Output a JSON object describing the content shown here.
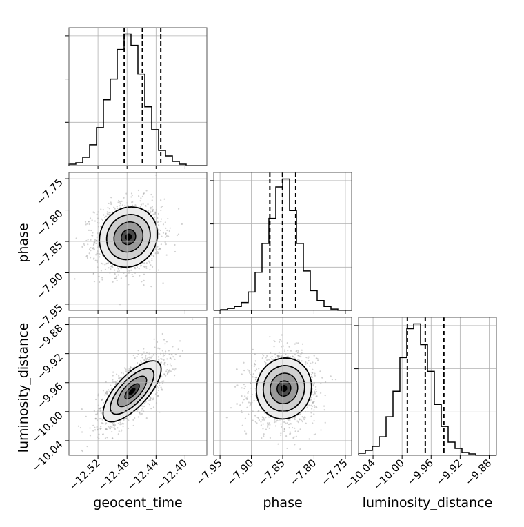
{
  "chart_data": {
    "type": "corner",
    "parameters": [
      "geocent_time",
      "phase",
      "luminosity_distance"
    ],
    "grid": true,
    "diagonal": [
      {
        "name": "geocent_time",
        "type": "histogram",
        "xlim": [
          -12.56,
          -12.37
        ],
        "ticks": [
          -12.52,
          -12.48,
          -12.44,
          -12.4
        ],
        "tick_labels": [
          "−12.52",
          "−12.48",
          "−12.44",
          "−12.40"
        ],
        "quantiles": [
          -12.4838,
          -12.4588,
          -12.4335
        ],
        "bin_edges": [
          -12.56,
          -12.5505,
          -12.541,
          -12.5315,
          -12.522,
          -12.5125,
          -12.503,
          -12.4935,
          -12.484,
          -12.4745,
          -12.465,
          -12.4555,
          -12.446,
          -12.4365,
          -12.427,
          -12.4175,
          -12.408,
          -12.3985,
          -12.389,
          -12.3795,
          -12.37
        ],
        "counts": [
          2,
          4,
          12,
          30,
          55,
          95,
          125,
          168,
          190,
          174,
          132,
          85,
          52,
          22,
          14,
          6,
          2,
          0,
          0,
          0
        ]
      },
      {
        "name": "phase",
        "type": "histogram",
        "xlim": [
          -7.96,
          -7.74
        ],
        "ticks": [
          -7.95,
          -7.9,
          -7.85,
          -7.8,
          -7.75
        ],
        "tick_labels": [
          "−7.95",
          "−7.90",
          "−7.85",
          "−7.80",
          "−7.75"
        ],
        "quantiles": [
          -7.8705,
          -7.8503,
          -7.8292
        ],
        "bin_edges": [
          -7.96,
          -7.949,
          -7.938,
          -7.927,
          -7.916,
          -7.905,
          -7.894,
          -7.883,
          -7.872,
          -7.861,
          -7.85,
          -7.839,
          -7.828,
          -7.817,
          -7.806,
          -7.795,
          -7.784,
          -7.773,
          -7.762,
          -7.751,
          -7.74
        ],
        "counts": [
          0,
          1,
          3,
          6,
          12,
          28,
          58,
          102,
          140,
          188,
          200,
          152,
          102,
          60,
          30,
          15,
          6,
          2,
          0,
          0
        ]
      },
      {
        "name": "luminosity_distance",
        "type": "histogram",
        "xlim": [
          -10.06,
          -9.87
        ],
        "ticks": [
          -10.04,
          -10.0,
          -9.96,
          -9.92,
          -9.88
        ],
        "tick_labels": [
          "−10.04",
          "−10.00",
          "−9.96",
          "−9.92",
          "−9.88"
        ],
        "quantiles": [
          -9.9927,
          -9.968,
          -9.9424
        ],
        "bin_edges": [
          -10.06,
          -10.0505,
          -10.041,
          -10.0315,
          -10.022,
          -10.0125,
          -10.003,
          -9.9935,
          -9.984,
          -9.9745,
          -9.965,
          -9.9555,
          -9.946,
          -9.9365,
          -9.927,
          -9.9175,
          -9.908,
          -9.8985,
          -9.889,
          -9.8795,
          -9.87
        ],
        "counts": [
          3,
          7,
          13,
          27,
          56,
          93,
          142,
          184,
          191,
          161,
          122,
          74,
          42,
          19,
          10,
          4,
          2,
          0,
          0,
          0
        ]
      }
    ],
    "off_diagonal": [
      {
        "x": "geocent_time",
        "y": "phase",
        "type": "2d-density-contour",
        "ylim": [
          -7.96,
          -7.74
        ],
        "yticks": [
          -7.75,
          -7.8,
          -7.85,
          -7.9,
          -7.95
        ],
        "ytick_labels": [
          "−7.75",
          "−7.80",
          "−7.85",
          "−7.90",
          "−7.95"
        ],
        "peak": [
          -12.478,
          -7.843
        ],
        "sigma": [
          0.02,
          0.024
        ],
        "correlation": 0.1
      },
      {
        "x": "geocent_time",
        "y": "luminosity_distance",
        "type": "2d-density-contour",
        "ylim": [
          -10.06,
          -9.87
        ],
        "yticks": [
          -9.88,
          -9.92,
          -9.96,
          -10.0,
          -10.04
        ],
        "ytick_labels": [
          "−9.88",
          "−9.92",
          "−9.96",
          "−10.00",
          "−10.04"
        ],
        "peak": [
          -12.473,
          -9.972
        ],
        "sigma": [
          0.02,
          0.021
        ],
        "correlation": 0.72
      },
      {
        "x": "phase",
        "y": "luminosity_distance",
        "type": "2d-density-contour",
        "peak": [
          -7.848,
          -9.968
        ],
        "sigma": [
          0.022,
          0.021
        ],
        "correlation": 0.05
      }
    ],
    "xlabels": [
      "geocent_time",
      "phase",
      "luminosity_distance"
    ],
    "ylabels": [
      "",
      "phase",
      "luminosity_distance"
    ]
  },
  "colors": {
    "line": "#000000",
    "grid": "#b0b0b0",
    "scatter": "#9a9a9a"
  }
}
